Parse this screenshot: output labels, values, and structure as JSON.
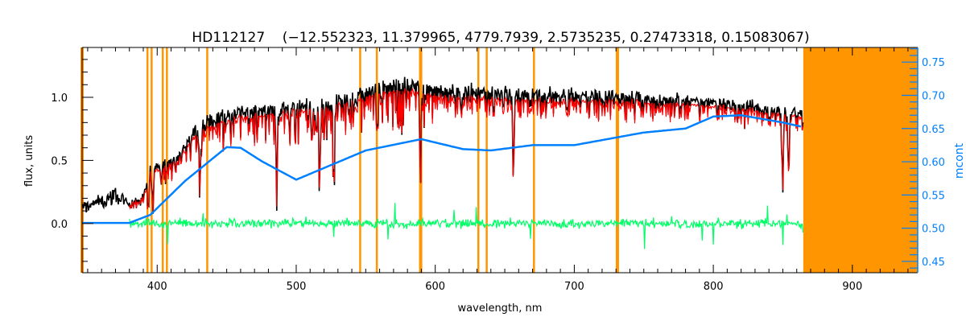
{
  "chart_data": {
    "type": "line",
    "title": "HD112127    (−12.552323, 11.379965, 4779.7939, 2.5735235, 0.27473318, 0.15083067)",
    "xlabel": "wavelength, nm",
    "ylabel": "flux, units",
    "ylabel_right": "mcont",
    "xlim": [
      346,
      947
    ],
    "ylim": [
      -0.39,
      1.395
    ],
    "ylim_right": [
      0.433,
      0.772
    ],
    "x_ticks": [
      400,
      500,
      600,
      700,
      800,
      900
    ],
    "y_ticks": [
      0.0,
      0.5,
      1.0
    ],
    "y_tick_labels": [
      "0.0",
      "0.5",
      "1.0"
    ],
    "y_ticks_right": [
      0.45,
      0.5,
      0.55,
      0.6,
      0.65,
      0.7,
      0.75
    ],
    "y_tick_labels_right": [
      "0.45",
      "0.50",
      "0.55",
      "0.60",
      "0.65",
      "0.70",
      "0.75"
    ],
    "grid": false,
    "colors": {
      "observed": "#000000",
      "model": "#ff0000",
      "residual": "#00ff66",
      "mcont": "#0080ff",
      "mask": "#ff9500",
      "highlight": "#ffff00",
      "right_axis": "#0080ff"
    },
    "masked_lines_nm": [
      346,
      393,
      396,
      404,
      407,
      436,
      546,
      558,
      589.5,
      631,
      637,
      671,
      731
    ],
    "masked_region_nm": [
      864.7,
      947
    ],
    "series": [
      {
        "name": "observed flux",
        "axis": "left",
        "x": [
          346,
          360,
          370,
          380,
          390,
          395,
          405,
          415,
          425,
          435,
          445,
          460,
          480,
          500,
          520,
          540,
          560,
          580,
          600,
          625,
          650,
          700,
          750,
          800,
          830,
          850,
          863
        ],
        "y": [
          0.13,
          0.18,
          0.24,
          0.16,
          0.2,
          0.45,
          0.48,
          0.52,
          0.7,
          0.82,
          0.86,
          0.9,
          0.92,
          0.95,
          0.96,
          1.02,
          1.1,
          1.12,
          1.08,
          1.06,
          1.05,
          1.03,
          1.0,
          0.96,
          0.93,
          0.9,
          0.88
        ]
      },
      {
        "name": "model flux",
        "axis": "left",
        "x": [
          380,
          390,
          395,
          405,
          415,
          425,
          435,
          445,
          460,
          480,
          500,
          520,
          540,
          560,
          580,
          600,
          625,
          650,
          700,
          750,
          800,
          830,
          850,
          863
        ],
        "y": [
          0.15,
          0.2,
          0.42,
          0.45,
          0.5,
          0.66,
          0.76,
          0.8,
          0.85,
          0.87,
          0.9,
          0.92,
          0.97,
          1.04,
          1.06,
          1.02,
          1.0,
          0.99,
          0.98,
          0.96,
          0.93,
          0.9,
          0.86,
          0.85
        ]
      },
      {
        "name": "residual",
        "axis": "left",
        "x_range": [
          380,
          863
        ],
        "y_level": 0.0,
        "noise": 0.05
      },
      {
        "name": "mcont",
        "axis": "right",
        "x": [
          346,
          380,
          395,
          420,
          450,
          460,
          475,
          500,
          525,
          550,
          590,
          620,
          640,
          670,
          700,
          750,
          780,
          800,
          820,
          850,
          863
        ],
        "y": [
          0.508,
          0.508,
          0.52,
          0.571,
          0.622,
          0.621,
          0.601,
          0.573,
          0.595,
          0.617,
          0.634,
          0.619,
          0.617,
          0.625,
          0.625,
          0.644,
          0.65,
          0.668,
          0.67,
          0.659,
          0.653
        ]
      }
    ]
  }
}
